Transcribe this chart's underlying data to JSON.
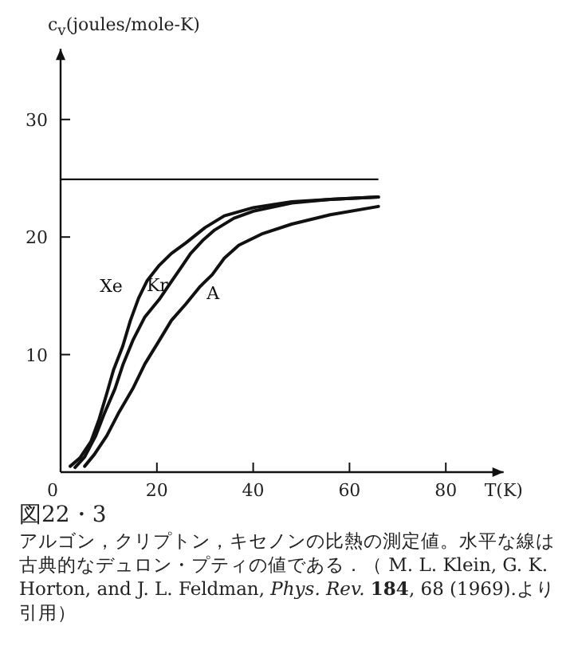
{
  "chart_data": {
    "type": "line",
    "title": "図22・3",
    "ylabel": "c$_{v}$(joules/mole-K)",
    "xlabel": "T(K)",
    "annotations": [
      "アルゴン，クリプトン，キセノンの比熱の測定値。水平な線は古典的なデュロン・プティの値である．（ M. L. Klein, G. K. Horton, and J. L. Feldman, *Phys. Rev.* **184**, 68 (1969).より引用）"
    ],
    "xlim": [
      0,
      92
    ],
    "ylim": [
      0,
      36
    ],
    "xticks": [
      0,
      20,
      40,
      60,
      80
    ],
    "yticks": [
      10,
      20,
      30
    ],
    "ref_lines": [
      {
        "axis": "y",
        "value": 24.9,
        "color": "#111111"
      }
    ],
    "series": [
      {
        "name": "Xe",
        "color": "#111111",
        "x": [
          2,
          4,
          6.3,
          8,
          9.6,
          11,
          12.9,
          14.5,
          16.2,
          18,
          20.5,
          23,
          26,
          30,
          34,
          40,
          48,
          56,
          66
        ],
        "values": [
          0.5,
          1.2,
          2.6,
          4.5,
          6.7,
          8.7,
          10.7,
          12.9,
          14.8,
          16.3,
          17.6,
          18.6,
          19.5,
          20.8,
          21.8,
          22.5,
          23.0,
          23.2,
          23.4
        ]
      },
      {
        "name": "Kr",
        "color": "#111111",
        "x": [
          3,
          5,
          7.3,
          9,
          11.3,
          13,
          15,
          17.5,
          20.5,
          23,
          25,
          27,
          29.5,
          32,
          36,
          40,
          48,
          56,
          66
        ],
        "values": [
          0.4,
          1.3,
          3.1,
          4.9,
          7.1,
          9.2,
          11.2,
          13.2,
          14.7,
          16.2,
          17.4,
          18.6,
          19.7,
          20.6,
          21.6,
          22.2,
          22.9,
          23.2,
          23.4
        ]
      },
      {
        "name": "A",
        "color": "#111111",
        "x": [
          5,
          7,
          9.6,
          12,
          15,
          17.5,
          20.5,
          23,
          26,
          29,
          31.5,
          34,
          37,
          42,
          48,
          56,
          66
        ],
        "values": [
          0.5,
          1.5,
          3.1,
          5.0,
          7.1,
          9.2,
          11.2,
          12.9,
          14.3,
          15.8,
          16.8,
          18.2,
          19.3,
          20.3,
          21.1,
          21.9,
          22.6
        ]
      }
    ]
  }
}
